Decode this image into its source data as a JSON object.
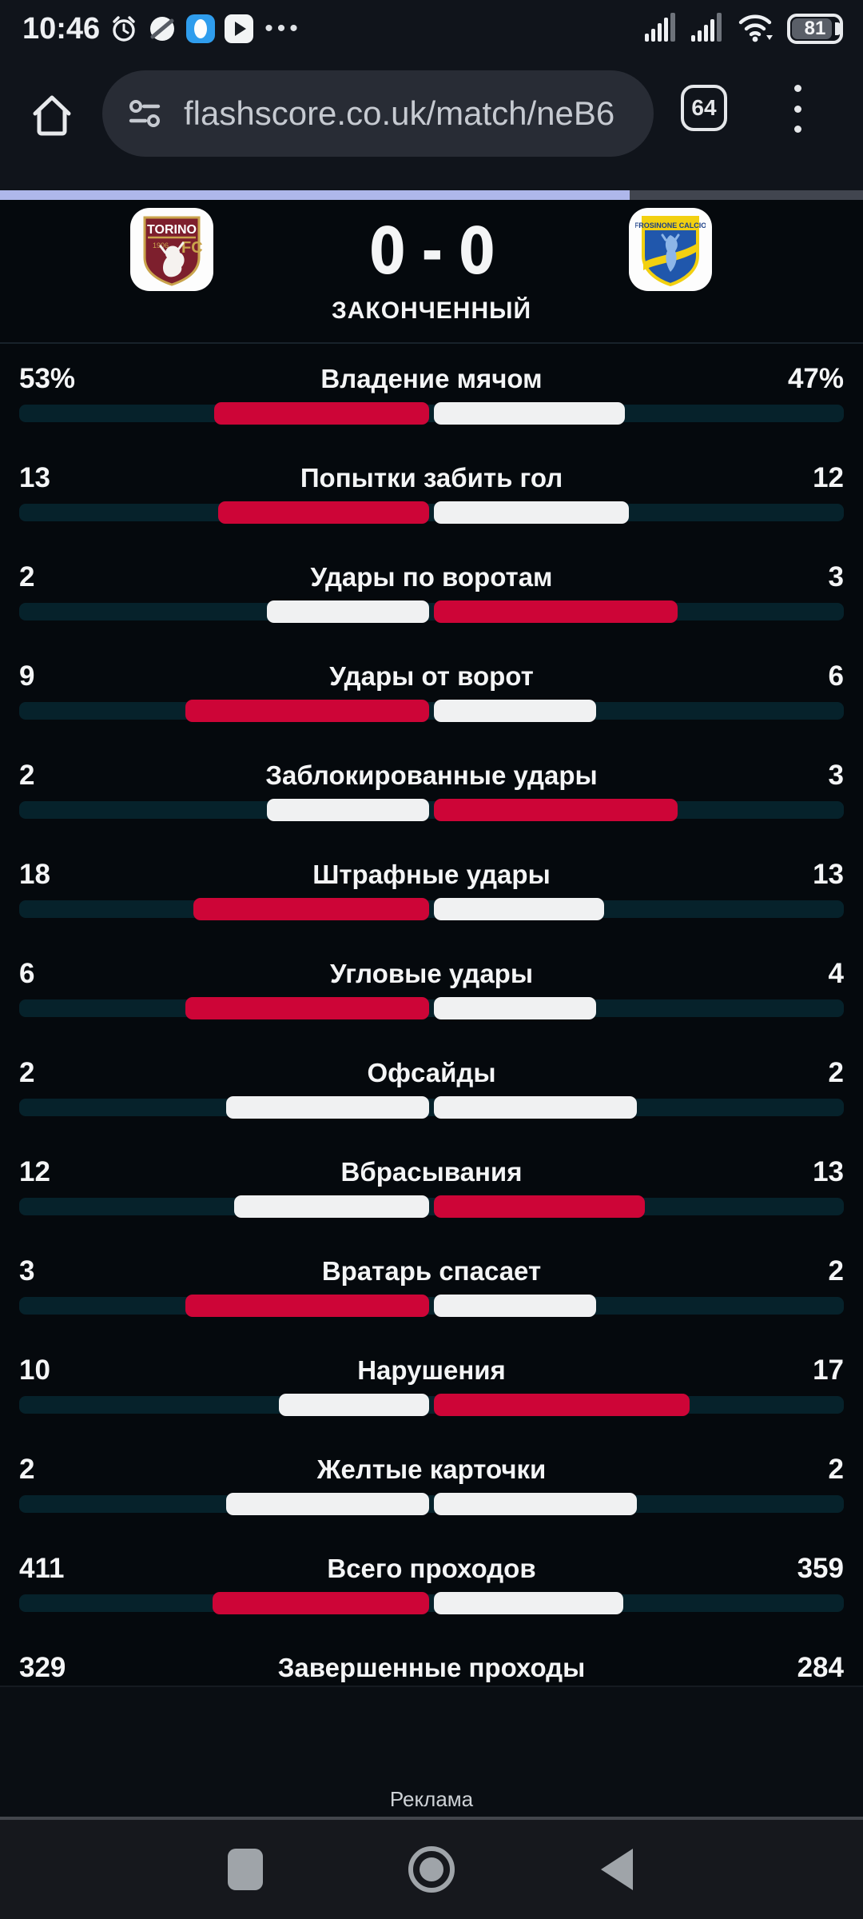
{
  "status_bar": {
    "time": "10:46",
    "battery_percent": "81",
    "more_dots": "•••",
    "icons_left": [
      "alarm-icon",
      "circle-app-icon",
      "messenger-app-icon",
      "video-app-icon"
    ],
    "icons_right": [
      "cell-signal-1-icon",
      "cell-signal-2-icon",
      "wifi-icon",
      "battery-icon"
    ]
  },
  "browser": {
    "url": "flashscore.co.uk/match/neB6",
    "tab_count": "64",
    "progress_percent": 73
  },
  "match": {
    "score_home": "0",
    "score_separator": "-",
    "score_away": "0",
    "status": "ЗАКОНЧЕННЫЙ",
    "home_logo": {
      "team": "Torino FC",
      "line1": "TORINO",
      "line2": "FC",
      "year": "1906",
      "shield_color": "#7d1f2d",
      "gold_color": "#c9a44c"
    },
    "away_logo": {
      "team": "Frosinone Calcio",
      "line1": "FROSINONE CALCIO",
      "blue_color": "#2057ac",
      "yellow_color": "#f2d010",
      "lion_color": "#8db6e8"
    }
  },
  "stats": {
    "colors": {
      "red": "#cd0537",
      "white": "#f0f1f2",
      "track": "#06222b"
    },
    "rows": [
      {
        "label": "Владение мячом",
        "home": 53,
        "away": 47,
        "home_display": "53%",
        "away_display": "47%",
        "bar_visible": true
      },
      {
        "label": "Попытки забить гол",
        "home": 13,
        "away": 12,
        "home_display": "13",
        "away_display": "12",
        "bar_visible": true
      },
      {
        "label": "Удары по воротам",
        "home": 2,
        "away": 3,
        "home_display": "2",
        "away_display": "3",
        "bar_visible": true
      },
      {
        "label": "Удары от ворот",
        "home": 9,
        "away": 6,
        "home_display": "9",
        "away_display": "6",
        "bar_visible": true
      },
      {
        "label": "Заблокированные удары",
        "home": 2,
        "away": 3,
        "home_display": "2",
        "away_display": "3",
        "bar_visible": true
      },
      {
        "label": "Штрафные удары",
        "home": 18,
        "away": 13,
        "home_display": "18",
        "away_display": "13",
        "bar_visible": true
      },
      {
        "label": "Угловые удары",
        "home": 6,
        "away": 4,
        "home_display": "6",
        "away_display": "4",
        "bar_visible": true
      },
      {
        "label": "Офсайды",
        "home": 2,
        "away": 2,
        "home_display": "2",
        "away_display": "2",
        "bar_visible": true
      },
      {
        "label": "Вбрасывания",
        "home": 12,
        "away": 13,
        "home_display": "12",
        "away_display": "13",
        "bar_visible": true
      },
      {
        "label": "Вратарь спасает",
        "home": 3,
        "away": 2,
        "home_display": "3",
        "away_display": "2",
        "bar_visible": true
      },
      {
        "label": "Нарушения",
        "home": 10,
        "away": 17,
        "home_display": "10",
        "away_display": "17",
        "bar_visible": true
      },
      {
        "label": "Желтые карточки",
        "home": 2,
        "away": 2,
        "home_display": "2",
        "away_display": "2",
        "bar_visible": true
      },
      {
        "label": "Всего проходов",
        "home": 411,
        "away": 359,
        "home_display": "411",
        "away_display": "359",
        "bar_visible": true
      },
      {
        "label": "Завершенные проходы",
        "home": 329,
        "away": 284,
        "home_display": "329",
        "away_display": "284",
        "bar_visible": false
      }
    ]
  },
  "ad": {
    "label": "Реклама"
  },
  "nav_bar": {
    "icons": [
      "recents-icon",
      "home-circle-icon",
      "back-icon"
    ]
  }
}
